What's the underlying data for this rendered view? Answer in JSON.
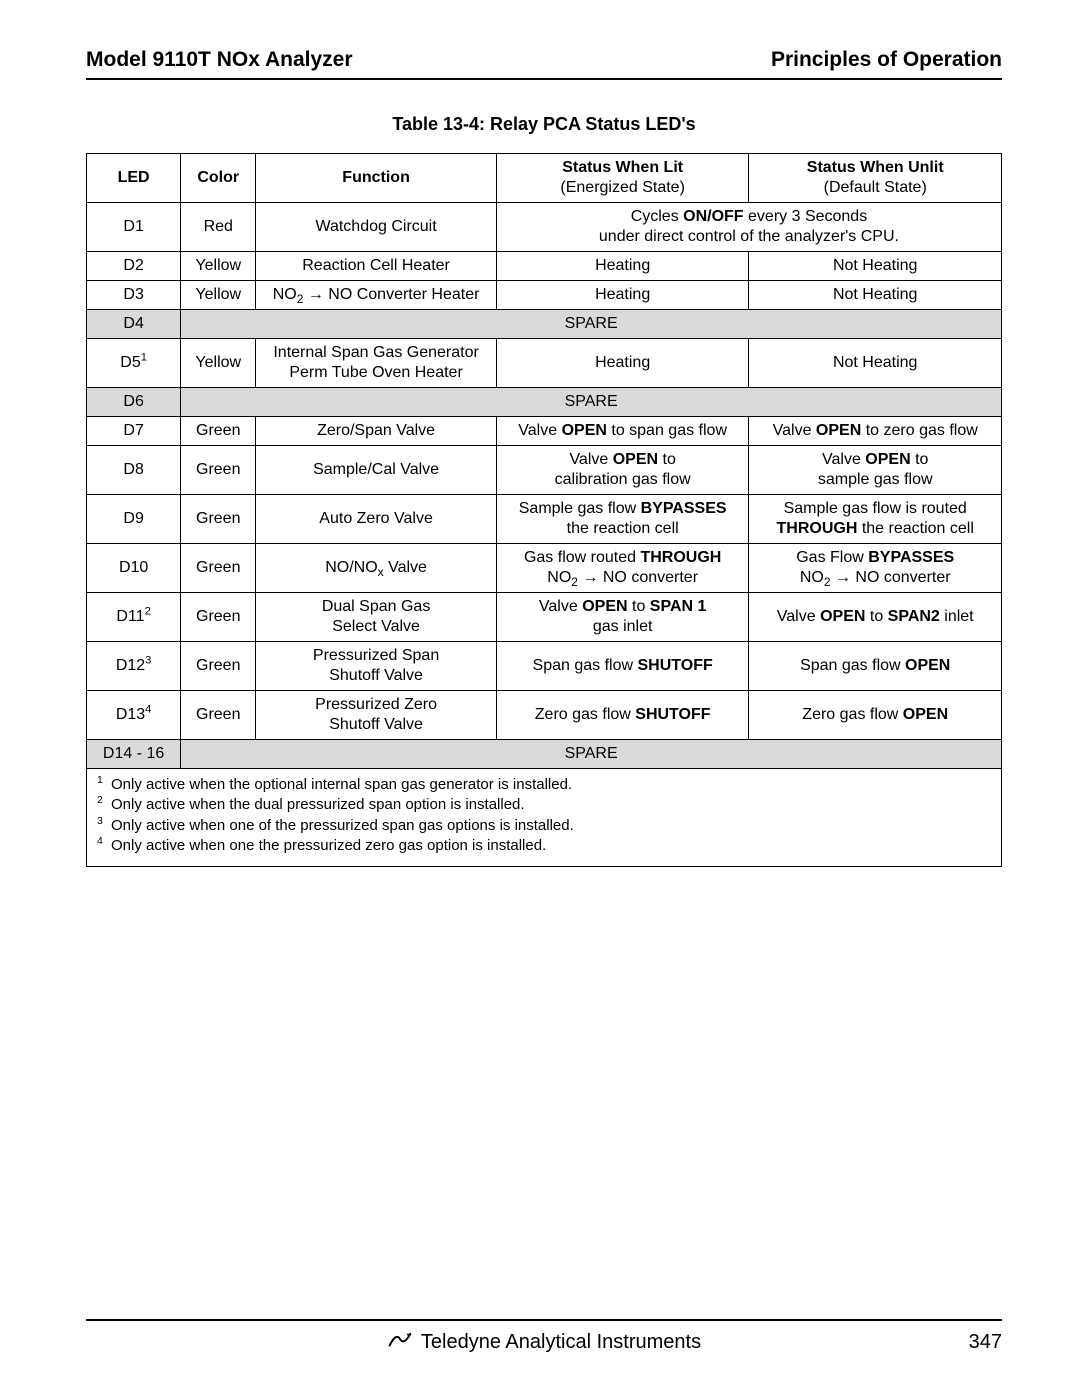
{
  "header": {
    "left": "Model 9110T NOx Analyzer",
    "right": "Principles of Operation"
  },
  "table_title": "Table 13-4:  Relay PCA Status LED's",
  "columns": {
    "led": "LED",
    "color": "Color",
    "function": "Function",
    "lit_main": "Status When Lit",
    "lit_sub": "(Energized State)",
    "unlit_main": "Status When Unlit",
    "unlit_sub": "(Default State)"
  },
  "rows": [
    {
      "type": "merged4",
      "led_html": "D1",
      "color": "Red",
      "function_html": "Watchdog Circuit",
      "merged_html": "Cycles <b>ON/OFF</b> every 3 Seconds<br>under direct control of the analyzer's CPU."
    },
    {
      "type": "normal",
      "led_html": "D2",
      "color": "Yellow",
      "function_html": "Reaction Cell Heater",
      "lit_html": "Heating",
      "unlit_html": "Not Heating"
    },
    {
      "type": "normal",
      "led_html": "D3",
      "color": "Yellow",
      "function_html": "NO<sub>2</sub> &rarr; NO Converter Heater",
      "lit_html": "Heating",
      "unlit_html": "Not Heating"
    },
    {
      "type": "spare",
      "led_html": "D4",
      "spare_text": "SPARE"
    },
    {
      "type": "normal",
      "led_html": "D5<sup>1</sup>",
      "color": "Yellow",
      "function_html": "Internal Span Gas Generator<br>Perm Tube Oven Heater",
      "lit_html": "Heating",
      "unlit_html": "Not Heating"
    },
    {
      "type": "spare",
      "led_html": "D6",
      "spare_text": "SPARE"
    },
    {
      "type": "normal",
      "led_html": "D7",
      "color": "Green",
      "function_html": "Zero/Span Valve",
      "lit_html": "Valve <b>OPEN</b> to span gas flow",
      "unlit_html": "Valve <b>OPEN</b> to zero gas flow"
    },
    {
      "type": "normal",
      "led_html": "D8",
      "color": "Green",
      "function_html": "Sample/Cal Valve",
      "lit_html": "Valve <b>OPEN</b> to<br>calibration gas flow",
      "unlit_html": "Valve <b>OPEN</b> to<br>sample gas flow"
    },
    {
      "type": "normal",
      "led_html": "D9",
      "color": "Green",
      "function_html": "Auto Zero  Valve",
      "lit_html": "Sample gas flow <b>BYPASSES</b><br>the reaction cell",
      "unlit_html": "Sample gas flow is routed<br><b>THROUGH</b> the reaction cell"
    },
    {
      "type": "normal",
      "led_html": "D10",
      "color": "Green",
      "function_html": "NO/NO<sub>x</sub> Valve",
      "lit_html": "Gas flow routed <b>THROUGH</b><br>NO<sub>2</sub> &rarr; NO converter",
      "unlit_html": "Gas Flow <b>BYPASSES</b><br>NO<sub>2</sub> &rarr; NO  converter"
    },
    {
      "type": "normal",
      "led_html": "D11<sup>2</sup>",
      "color": "Green",
      "function_html": "Dual Span Gas<br>Select Valve",
      "lit_html": "Valve <b>OPEN</b> to <b>SPAN 1</b><br>gas inlet",
      "unlit_html": "Valve <b>OPEN</b> to <b>SPAN2</b> inlet"
    },
    {
      "type": "normal",
      "led_html": "D12<sup>3</sup>",
      "color": "Green",
      "function_html": "Pressurized Span<br>Shutoff Valve",
      "lit_html": "Span gas flow <b>SHUTOFF</b>",
      "unlit_html": "Span gas flow <b>OPEN</b>"
    },
    {
      "type": "normal",
      "led_html": "D13<sup>4</sup>",
      "color": "Green",
      "function_html": "Pressurized Zero<br>Shutoff Valve",
      "lit_html": "Zero gas flow <b>SHUTOFF</b>",
      "unlit_html": "Zero gas flow <b>OPEN</b>"
    },
    {
      "type": "spare",
      "led_html": "D14 - 16",
      "spare_text": "SPARE"
    }
  ],
  "footnotes": [
    {
      "num": "1",
      "text": "Only active when the optional internal span gas generator is installed."
    },
    {
      "num": "2",
      "text": "Only active when the dual pressurized span option is installed."
    },
    {
      "num": "3",
      "text": "Only active when one of the pressurized span gas options is installed."
    },
    {
      "num": "4",
      "text": "Only active when one the pressurized zero gas option is installed."
    }
  ],
  "footer": {
    "brand": "Teledyne Analytical Instruments",
    "page": "347"
  },
  "colors": {
    "spare_bg": "#d9d9d9",
    "text": "#000000",
    "rule": "#000000"
  }
}
